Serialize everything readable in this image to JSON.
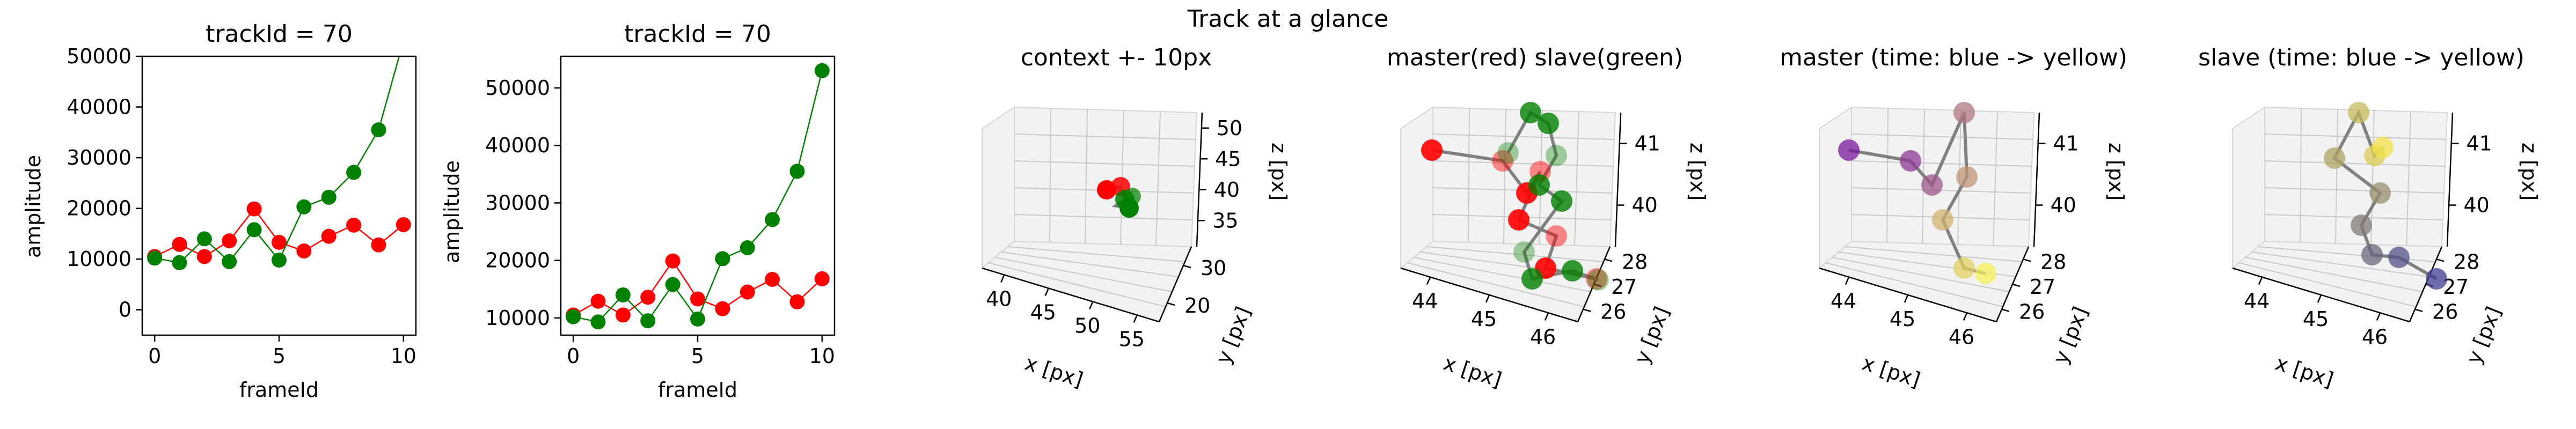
{
  "figure": {
    "suptitle": "Track at a glance"
  },
  "colors": {
    "master": "#ff0000",
    "slave": "#008000",
    "line_gray": "#808080",
    "viridis_start": "#3b3b8f",
    "viridis_end": "#f2e14a",
    "plasma_start": "#7a1a9a",
    "plasma_end": "#f5f05a"
  },
  "chart_data": [
    {
      "type": "line",
      "title": "trackId = 70",
      "xlabel": "frameId",
      "ylabel": "amplitude",
      "xlim": [
        -0.5,
        10.5
      ],
      "ylim": [
        -5000,
        50000
      ],
      "xticks": [
        0,
        5,
        10
      ],
      "yticks": [
        0,
        10000,
        20000,
        30000,
        40000,
        50000
      ],
      "x": [
        0,
        1,
        2,
        3,
        4,
        5,
        6,
        7,
        8,
        9,
        10
      ],
      "series": [
        {
          "color": "#ff0000",
          "values": [
            10500,
            12900,
            10500,
            13600,
            19900,
            13300,
            11600,
            14500,
            16700,
            12800,
            16800
          ]
        },
        {
          "color": "#008000",
          "values": [
            10200,
            9300,
            14000,
            9500,
            15800,
            9800,
            20300,
            22200,
            27100,
            35500,
            53000
          ]
        }
      ]
    },
    {
      "type": "line",
      "title": "trackId = 70",
      "xlabel": "frameId",
      "ylabel": "amplitude",
      "xlim": [
        -0.5,
        10.5
      ],
      "ylim": [
        7000,
        55500
      ],
      "xticks": [
        0,
        5,
        10
      ],
      "yticks": [
        10000,
        20000,
        30000,
        40000,
        50000
      ],
      "x": [
        0,
        1,
        2,
        3,
        4,
        5,
        6,
        7,
        8,
        9,
        10
      ],
      "series": [
        {
          "color": "#ff0000",
          "values": [
            10500,
            12900,
            10500,
            13600,
            19900,
            13300,
            11600,
            14500,
            16700,
            12800,
            16800
          ]
        },
        {
          "color": "#008000",
          "values": [
            10200,
            9300,
            14000,
            9500,
            15800,
            9800,
            20300,
            22200,
            27100,
            35500,
            53000
          ]
        }
      ]
    },
    {
      "type": "scatter",
      "title": "context +- 10px",
      "xlabel": "x [px]",
      "ylabel": "y [px]",
      "zlabel": "z [px]",
      "xticks": [
        "40",
        "45",
        "50",
        "55"
      ],
      "yticks": [
        "20",
        "30"
      ],
      "zticks": [
        "35",
        "40",
        "45",
        "50"
      ]
    },
    {
      "type": "scatter",
      "title": "master(red) slave(green)",
      "xlabel": "x [px]",
      "ylabel": "y [px]",
      "zlabel": "z [px]",
      "xticks": [
        "44",
        "45",
        "46"
      ],
      "yticks": [
        "26",
        "27",
        "28"
      ],
      "zticks": [
        "40",
        "41"
      ]
    },
    {
      "type": "scatter",
      "title": "master (time: blue -> yellow)",
      "xlabel": "x [px]",
      "ylabel": "y [px]",
      "zlabel": "z [px]",
      "xticks": [
        "44",
        "45",
        "46"
      ],
      "yticks": [
        "26",
        "27",
        "28"
      ],
      "zticks": [
        "40",
        "41"
      ]
    },
    {
      "type": "scatter",
      "title": "slave (time: blue -> yellow)",
      "xlabel": "x [px]",
      "ylabel": "y [px]",
      "zlabel": "z [px]",
      "xticks": [
        "44",
        "45",
        "46"
      ],
      "yticks": [
        "26",
        "27",
        "28"
      ],
      "zticks": [
        "40",
        "41"
      ]
    }
  ]
}
